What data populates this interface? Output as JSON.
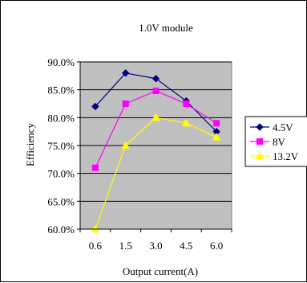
{
  "chart_data": {
    "type": "line",
    "title": "1.0V module",
    "xlabel": "Output current(A)",
    "ylabel": "Efficiency",
    "categories": [
      "0.6",
      "1.5",
      "3.0",
      "4.5",
      "6.0"
    ],
    "y_ticks": [
      "60.0%",
      "65.0%",
      "70.0%",
      "75.0%",
      "80.0%",
      "85.0%",
      "90.0%"
    ],
    "ylim": [
      60,
      90
    ],
    "grid": "horizontal",
    "legend_position": "right",
    "plot_background": "#c0c0c0",
    "series": [
      {
        "name": "4.5V",
        "values": [
          82.0,
          88.0,
          87.0,
          83.0,
          77.5
        ],
        "color": "#000080",
        "marker": "diamond"
      },
      {
        "name": "8V",
        "values": [
          71.0,
          82.5,
          84.8,
          82.5,
          79.0
        ],
        "color": "#ff00ff",
        "marker": "square"
      },
      {
        "name": "13.2V",
        "values": [
          60.0,
          75.0,
          80.0,
          79.0,
          76.5
        ],
        "color": "#ffff00",
        "marker": "triangle"
      }
    ]
  }
}
